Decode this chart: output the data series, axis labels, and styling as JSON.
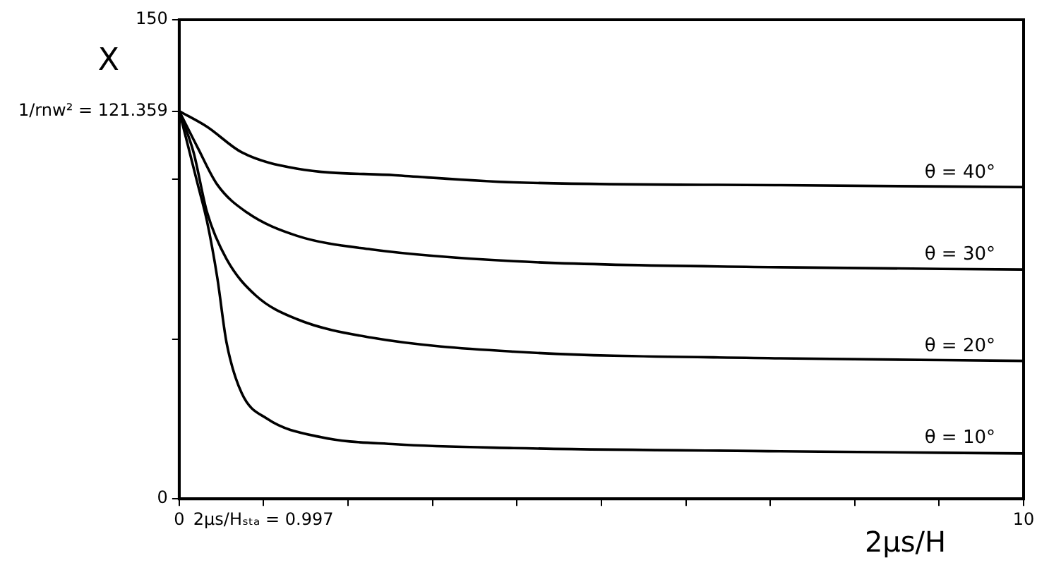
{
  "chart_data": {
    "type": "line",
    "xlabel": "2μs/H",
    "ylabel": "X",
    "xlim": [
      0,
      10
    ],
    "ylim": [
      0,
      150
    ],
    "xticks": [
      0,
      {
        "value": 0.997,
        "label": "2μs/Hₛₜₐ = 0.997"
      },
      {
        "value": 2,
        "label": null
      },
      {
        "value": 3,
        "label": null
      },
      {
        "value": 4,
        "label": null
      },
      {
        "value": 5,
        "label": null
      },
      {
        "value": 6,
        "label": null
      },
      {
        "value": 7,
        "label": null
      },
      {
        "value": 8,
        "label": null
      },
      {
        "value": 9,
        "label": null
      },
      10
    ],
    "yticks": [
      0,
      {
        "value": 50,
        "label": null
      },
      {
        "value": 100,
        "label": null
      },
      {
        "value": 121.359,
        "label": "1/rnw² = 121.359"
      },
      150
    ],
    "grid": false,
    "legend": false,
    "marker": "none",
    "line_style": "solid",
    "series": [
      {
        "name": "θ = 40°",
        "color": "#000000",
        "x": [
          0,
          0.33,
          0.74,
          1.39,
          2.56,
          3.96,
          7.12,
          10
        ],
        "values": [
          121.4,
          116.5,
          108.5,
          103.4,
          101.3,
          99.1,
          98.2,
          97.6
        ]
      },
      {
        "name": "θ = 30°",
        "color": "#000000",
        "x": [
          0,
          0.22,
          0.45,
          0.8,
          1.39,
          2.27,
          3.96,
          7.12,
          10
        ],
        "values": [
          121.4,
          109.9,
          98.4,
          89.7,
          82.4,
          78.1,
          74.4,
          72.5,
          71.8
        ]
      },
      {
        "name": "θ = 20°",
        "color": "#000000",
        "x": [
          0,
          0.17,
          0.33,
          0.56,
          0.91,
          1.39,
          2.27,
          3.96,
          7.12,
          10
        ],
        "values": [
          121.4,
          108.5,
          89.7,
          75.1,
          63.6,
          56.3,
          50.5,
          46.1,
          44.0,
          43.2
        ]
      },
      {
        "name": "θ = 10°",
        "color": "#000000",
        "x": [
          0,
          0.22,
          0.33,
          0.45,
          0.56,
          0.74,
          1.04,
          1.68,
          2.56,
          3.96,
          7.12,
          10
        ],
        "values": [
          121.4,
          98.4,
          86.8,
          69.4,
          49.0,
          33.1,
          25.1,
          19.3,
          17.1,
          15.9,
          14.9,
          14.2
        ]
      }
    ]
  }
}
